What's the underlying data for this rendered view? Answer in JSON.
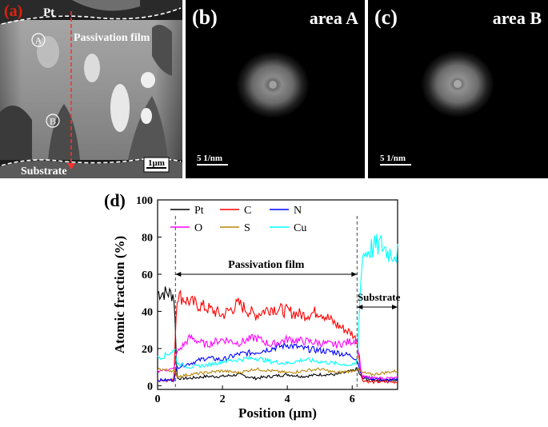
{
  "panel_a": {
    "label": "(a)",
    "top_layer": "Pt",
    "film_label": "Passivation film",
    "substrate_label": "Substrate",
    "marker_a": "A",
    "marker_b": "B",
    "scale_bar": "1μm"
  },
  "panel_b": {
    "label": "(b)",
    "title": "area A",
    "scale_bar": "5 1/nm"
  },
  "panel_c": {
    "label": "(c)",
    "title": "area B",
    "scale_bar": "5 1/nm"
  },
  "panel_d": {
    "label": "(d)",
    "film_annotation": "Passivation film",
    "substrate_annotation": "Substrate"
  },
  "colors": {
    "label_red": "#e3200c",
    "profile_line": "#ff3030"
  },
  "chart_data": {
    "type": "line",
    "title": "",
    "xlabel": "Position (μm)",
    "ylabel": "Atomic fraction (%)",
    "xlim": [
      0,
      7.4
    ],
    "ylim": [
      -2,
      100
    ],
    "xticks": [
      "0",
      "2",
      "4",
      "6"
    ],
    "xtick_values": [
      0,
      2,
      4,
      6
    ],
    "yticks": [
      "0",
      "20",
      "40",
      "60",
      "80",
      "100"
    ],
    "ytick_values": [
      0,
      20,
      40,
      60,
      80,
      100
    ],
    "boundaries": [
      0.55,
      6.15
    ],
    "series": [
      {
        "name": "Pt",
        "color": "#000000",
        "x": [
          0,
          0.3,
          0.5,
          0.55,
          0.6,
          1.0,
          1.5,
          2.0,
          2.5,
          3.0,
          3.5,
          4.0,
          4.5,
          5.0,
          5.5,
          6.0,
          6.15,
          6.3,
          6.6,
          7.0,
          7.4
        ],
        "y": [
          50,
          50,
          49,
          30,
          4,
          4,
          5,
          5,
          6,
          4,
          5,
          6,
          5,
          6,
          6,
          8,
          9,
          4,
          3,
          3,
          3
        ]
      },
      {
        "name": "C",
        "color": "#ff0000",
        "x": [
          0,
          0.5,
          0.55,
          0.6,
          1.0,
          1.5,
          2.0,
          2.5,
          3.0,
          3.5,
          4.0,
          4.5,
          5.0,
          5.5,
          6.0,
          6.15,
          6.3,
          6.6,
          7.0,
          7.4
        ],
        "y": [
          3,
          3,
          30,
          49,
          45,
          42,
          38,
          44,
          38,
          42,
          40,
          38,
          40,
          33,
          28,
          24,
          3,
          2,
          2,
          2
        ]
      },
      {
        "name": "N",
        "color": "#0000ff",
        "x": [
          0,
          0.5,
          0.6,
          1.0,
          1.5,
          2.0,
          2.5,
          3.0,
          3.5,
          4.0,
          4.5,
          5.0,
          5.5,
          6.0,
          6.15,
          6.3,
          6.6,
          7.0,
          7.4
        ],
        "y": [
          3,
          3,
          10,
          12,
          15,
          14,
          17,
          18,
          20,
          22,
          20,
          19,
          18,
          16,
          14,
          5,
          4,
          3,
          3
        ]
      },
      {
        "name": "O",
        "color": "#ff00ff",
        "x": [
          0,
          0.5,
          0.6,
          1.0,
          1.5,
          2.0,
          2.5,
          3.0,
          3.5,
          4.0,
          4.5,
          5.0,
          5.5,
          6.0,
          6.15,
          6.3,
          6.6,
          7.0,
          7.4
        ],
        "y": [
          8,
          9,
          18,
          26,
          22,
          25,
          23,
          26,
          22,
          25,
          24,
          23,
          22,
          24,
          25,
          5,
          4,
          4,
          4
        ]
      },
      {
        "name": "S",
        "color": "#b8860b",
        "x": [
          0,
          0.5,
          0.6,
          1.0,
          1.5,
          2.0,
          2.5,
          3.0,
          3.5,
          4.0,
          4.5,
          5.0,
          5.5,
          6.0,
          6.15,
          6.3,
          6.6,
          7.0,
          7.4
        ],
        "y": [
          9,
          8,
          5,
          6,
          7,
          8,
          7,
          9,
          8,
          7,
          8,
          9,
          7,
          8,
          9,
          7,
          6,
          7,
          8
        ]
      },
      {
        "name": "Cu",
        "color": "#00ffff",
        "x": [
          0,
          0.2,
          0.4,
          0.55,
          0.6,
          1.0,
          1.5,
          2.0,
          2.5,
          3.0,
          3.5,
          4.0,
          4.5,
          5.0,
          5.5,
          6.0,
          6.15,
          6.3,
          6.6,
          6.9,
          7.1,
          7.4
        ],
        "y": [
          15,
          16,
          18,
          19,
          12,
          10,
          11,
          13,
          14,
          15,
          13,
          12,
          14,
          13,
          12,
          11,
          12,
          70,
          74,
          76,
          72,
          71
        ]
      }
    ]
  }
}
